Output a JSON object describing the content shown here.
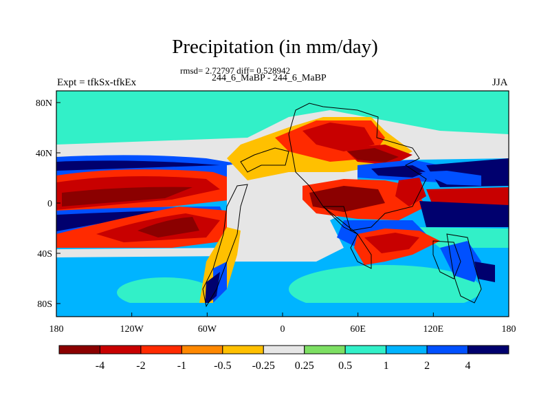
{
  "figure": {
    "title": "Precipitation (in mm/day)",
    "stats": "rmsd= 2.72797 diff= 0.528942",
    "subtitle": "244_6_MaBP - 244_6_MaBP",
    "left_label": "Expt = tfkSx-tfkEx",
    "right_label": "JJA"
  },
  "axes": {
    "x_ticks": [
      "180",
      "120W",
      "60W",
      "0",
      "60E",
      "120E",
      "180"
    ],
    "y_ticks": [
      "80N",
      "40N",
      "0",
      "40S",
      "80S"
    ],
    "lon_range": [
      -180,
      180
    ],
    "lat_range": [
      -90,
      90
    ]
  },
  "colorbar": {
    "labels": [
      "-4",
      "-2",
      "-1",
      "-0.5",
      "-0.25",
      "0.25",
      "0.5",
      "1",
      "2",
      "4"
    ],
    "colors": [
      "#8b0000",
      "#c80000",
      "#ff2a00",
      "#ff8800",
      "#ffc000",
      "#e6e6e6",
      "#7ddf63",
      "#32f0c8",
      "#00b4ff",
      "#0050ff",
      "#00006e"
    ]
  }
}
